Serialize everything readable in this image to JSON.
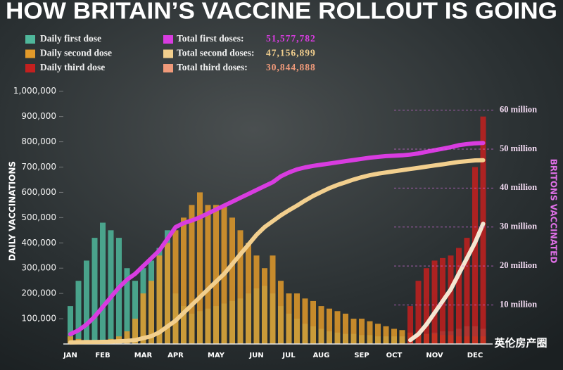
{
  "chart_data": {
    "type": "bar-line",
    "title": "HOW BRITAIN’S VACCINE ROLLOUT IS GOING",
    "y_label": "DAILY VACCINATIONS",
    "y2_label": "BRITONS VACCINATED",
    "watermark": "英伦房产圈",
    "categories": [
      "JAN",
      null,
      null,
      null,
      "FEB",
      null,
      null,
      null,
      null,
      "MAR",
      null,
      null,
      null,
      "APR",
      null,
      null,
      null,
      null,
      "MAY",
      null,
      null,
      null,
      null,
      "JUN",
      null,
      null,
      null,
      "JUL",
      null,
      null,
      null,
      "AUG",
      null,
      null,
      null,
      null,
      "SEP",
      null,
      null,
      null,
      "OCT",
      null,
      null,
      null,
      null,
      "NOV",
      null,
      null,
      null,
      null,
      "DEC",
      null
    ],
    "ylim": [
      0,
      1041000
    ],
    "yticks": [
      {
        "value": 100000,
        "label": "100,000"
      },
      {
        "value": 200000,
        "label": "200,000"
      },
      {
        "value": 300000,
        "label": "300,000"
      },
      {
        "value": 400000,
        "label": "400,000"
      },
      {
        "value": 500000,
        "label": "500,000"
      },
      {
        "value": 600000,
        "label": "600,000"
      },
      {
        "value": 700000,
        "label": "700,000"
      },
      {
        "value": 800000,
        "label": "800,000"
      },
      {
        "value": 900000,
        "label": "900,000"
      },
      {
        "value": 1000000,
        "label": "1,000,000"
      }
    ],
    "y2lim": [
      0,
      67500000
    ],
    "y2ticks": [
      {
        "value": 10000000,
        "label": "10 million"
      },
      {
        "value": 20000000,
        "label": "20 million"
      },
      {
        "value": 30000000,
        "label": "30 million"
      },
      {
        "value": 40000000,
        "label": "40 million"
      },
      {
        "value": 50000000,
        "label": "50 million"
      },
      {
        "value": 60000000,
        "label": "60 million"
      }
    ],
    "series": [
      {
        "name": "Daily first dose",
        "kind": "bar",
        "color": "#4fb79b",
        "values": [
          150000,
          250000,
          330000,
          420000,
          480000,
          450000,
          420000,
          300000,
          250000,
          300000,
          330000,
          380000,
          450000,
          200000,
          150000,
          120000,
          130000,
          140000,
          150000,
          160000,
          170000,
          180000,
          200000,
          220000,
          230000,
          200000,
          150000,
          120000,
          100000,
          80000,
          70000,
          60000,
          50000,
          45000,
          40000,
          40000,
          35000,
          35000,
          30000,
          30000,
          30000,
          30000,
          30000,
          35000,
          40000,
          45000,
          50000,
          50000,
          60000,
          70000,
          70000,
          60000
        ]
      },
      {
        "name": "Daily second dose",
        "kind": "bar",
        "color": "#e29a2a",
        "values": [
          30000,
          20000,
          15000,
          15000,
          15000,
          20000,
          30000,
          50000,
          100000,
          200000,
          250000,
          350000,
          400000,
          450000,
          500000,
          550000,
          600000,
          550000,
          550000,
          550000,
          500000,
          450000,
          400000,
          350000,
          300000,
          350000,
          250000,
          200000,
          200000,
          180000,
          170000,
          150000,
          140000,
          130000,
          120000,
          100000,
          100000,
          90000,
          80000,
          70000,
          60000,
          55000,
          45000,
          40000,
          40000,
          40000,
          35000,
          35000,
          30000,
          30000,
          30000,
          30000
        ]
      },
      {
        "name": "Daily third dose",
        "kind": "bar",
        "color": "#c3201f",
        "values": [
          null,
          null,
          null,
          null,
          null,
          null,
          null,
          null,
          null,
          null,
          null,
          null,
          null,
          null,
          null,
          null,
          null,
          null,
          null,
          null,
          null,
          null,
          null,
          null,
          null,
          null,
          null,
          null,
          null,
          null,
          null,
          null,
          null,
          null,
          null,
          null,
          null,
          null,
          null,
          null,
          null,
          null,
          150000,
          250000,
          300000,
          330000,
          340000,
          350000,
          380000,
          420000,
          700000,
          900000
        ]
      },
      {
        "name": "Total first doses:",
        "kind": "line",
        "axis": "y2",
        "color": "#d83ce0",
        "legend_value": "51,577,782",
        "values": [
          2500000,
          3500000,
          5000000,
          7000000,
          9500000,
          12000000,
          14500000,
          16500000,
          18000000,
          20000000,
          22000000,
          24000000,
          27000000,
          30000000,
          31000000,
          31700000,
          32500000,
          33500000,
          34500000,
          35500000,
          36500000,
          37500000,
          38500000,
          39500000,
          40500000,
          41500000,
          43000000,
          44000000,
          44800000,
          45300000,
          45700000,
          46000000,
          46300000,
          46600000,
          46900000,
          47200000,
          47500000,
          47800000,
          48000000,
          48200000,
          48300000,
          48400000,
          48600000,
          48900000,
          49300000,
          49700000,
          50100000,
          50500000,
          51000000,
          51300000,
          51500000,
          51577782
        ]
      },
      {
        "name": "Total second doses:",
        "kind": "line",
        "axis": "y2",
        "color": "#f2cf8e",
        "legend_value": "47,156,899",
        "values": [
          400000,
          450000,
          500000,
          500000,
          550000,
          600000,
          700000,
          800000,
          1000000,
          1500000,
          2000000,
          3000000,
          4500000,
          6000000,
          8000000,
          10000000,
          12000000,
          14000000,
          16000000,
          18000000,
          20500000,
          23000000,
          25500000,
          28000000,
          30000000,
          31500000,
          33000000,
          34300000,
          35500000,
          36800000,
          38000000,
          39000000,
          40000000,
          40800000,
          41500000,
          42200000,
          42800000,
          43300000,
          43700000,
          44000000,
          44300000,
          44600000,
          44900000,
          45200000,
          45500000,
          45800000,
          46100000,
          46400000,
          46700000,
          46900000,
          47100000,
          47156899
        ]
      },
      {
        "name": "Total third doses:",
        "kind": "line",
        "axis": "y2",
        "color": "#f09a7a",
        "line_color": "#f5e6d2",
        "legend_value": "30,844,888",
        "values": [
          null,
          null,
          null,
          null,
          null,
          null,
          null,
          null,
          null,
          null,
          null,
          null,
          null,
          null,
          null,
          null,
          null,
          null,
          null,
          null,
          null,
          null,
          null,
          null,
          null,
          null,
          null,
          null,
          null,
          null,
          null,
          null,
          null,
          null,
          null,
          null,
          null,
          null,
          null,
          null,
          null,
          null,
          1000000,
          2500000,
          5000000,
          8000000,
          11000000,
          14000000,
          18000000,
          22000000,
          26000000,
          30844888
        ]
      }
    ]
  }
}
